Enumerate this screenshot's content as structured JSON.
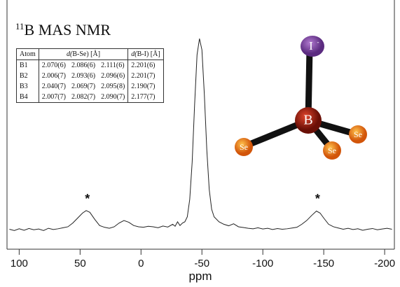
{
  "chart_data": {
    "type": "line",
    "title_isotope": "11",
    "title": "B MAS NMR",
    "x_label": "ppm",
    "xlim": [
      110,
      -208
    ],
    "ylim": [
      0,
      100
    ],
    "xticks": [
      100,
      50,
      0,
      -50,
      -100,
      -150,
      -200
    ],
    "color": "#222",
    "x": [
      108,
      104,
      100,
      96,
      92,
      88,
      84,
      80,
      76,
      72,
      68,
      64,
      60,
      56,
      52,
      48,
      45,
      42,
      38,
      34,
      30,
      26,
      22,
      18,
      14,
      10,
      6,
      2,
      -2,
      -6,
      -10,
      -14,
      -18,
      -22,
      -26,
      -28,
      -30,
      -32,
      -34,
      -36,
      -38,
      -40,
      -42,
      -44,
      -46,
      -48,
      -50,
      -52,
      -54,
      -56,
      -58,
      -60,
      -64,
      -68,
      -72,
      -76,
      -80,
      -84,
      -88,
      -92,
      -96,
      -100,
      -104,
      -108,
      -112,
      -116,
      -120,
      -124,
      -128,
      -132,
      -136,
      -140,
      -144,
      -147,
      -150,
      -154,
      -158,
      -162,
      -166,
      -170,
      -174,
      -178,
      -182,
      -186,
      -190,
      -194,
      -198,
      -202,
      -206
    ],
    "values": [
      8,
      7.5,
      8.2,
      7.6,
      8.3,
      7.8,
      8.1,
      7.5,
      8.4,
      7.9,
      8.2,
      8.6,
      9,
      10.5,
      12.5,
      14.5,
      15.5,
      14.8,
      12,
      9.5,
      8.8,
      8.4,
      9,
      10.5,
      11.5,
      10.8,
      9.5,
      9,
      8.8,
      9.2,
      9,
      8.6,
      9.3,
      8.9,
      10,
      9.2,
      11,
      9.5,
      10.5,
      11,
      13,
      20,
      35,
      58,
      78,
      84.5,
      80,
      62,
      40,
      24,
      16,
      13,
      11,
      10,
      9.4,
      10.2,
      9,
      8.7,
      8.4,
      8.2,
      8.6,
      8.1,
      8.4,
      7.9,
      8.3,
      8,
      8.2,
      8.5,
      8.8,
      10,
      11.5,
      13.5,
      15.3,
      14.5,
      12.5,
      10,
      9,
      8.5,
      8,
      8.4,
      7.9,
      8.2,
      7.6,
      8,
      8.3,
      7.8,
      8.1,
      8.4,
      8
    ],
    "annotations": [
      {
        "text": "*",
        "x": 44,
        "y": 18.5
      },
      {
        "text": "*",
        "x": -145,
        "y": 18.5
      }
    ]
  },
  "table": {
    "header": [
      "Atom",
      "d(B-Se) [Å]",
      "d(B-I) [Å]"
    ],
    "rows": [
      [
        "B1",
        "2.070(6)",
        "2.086(6)",
        "2.111(6)",
        "2.201(6)"
      ],
      [
        "B2",
        "2.006(7)",
        "2.093(6)",
        "2.096(6)",
        "2.201(7)"
      ],
      [
        "B3",
        "2.040(7)",
        "2.069(7)",
        "2.095(8)",
        "2.190(7)"
      ],
      [
        "B4",
        "2.007(7)",
        "2.082(7)",
        "2.090(7)",
        "2.177(7)"
      ]
    ]
  },
  "molecule": {
    "atoms": [
      "I",
      "B",
      "Se",
      "Se",
      "Se"
    ],
    "charge": "-"
  }
}
